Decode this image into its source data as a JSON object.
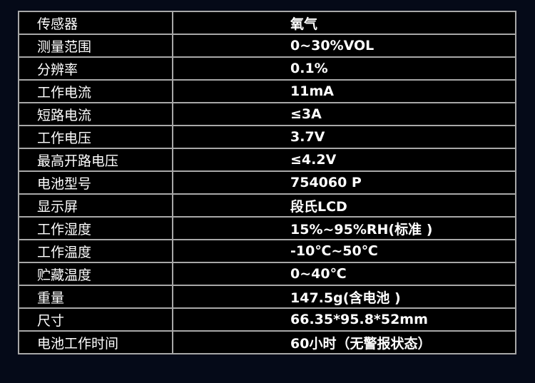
{
  "specs": [
    {
      "label": "传感器",
      "value": "氧气"
    },
    {
      "label": "测量范围",
      "value": "0~30%VOL"
    },
    {
      "label": "分辨率",
      "value": "0.1%"
    },
    {
      "label": "工作电流",
      "value": "11mA"
    },
    {
      "label": "短路电流",
      "value": "≤3A"
    },
    {
      "label": "工作电压",
      "value": "3.7V"
    },
    {
      "label": "最高开路电压",
      "value": "≤4.2V"
    },
    {
      "label": "电池型号",
      "value": "754060 P"
    },
    {
      "label": "显示屏",
      "value": "段氏LCD"
    },
    {
      "label": "工作湿度",
      "value": "15%~95%RH(标准 )"
    },
    {
      "label": "工作温度",
      "value": "-10℃~50℃"
    },
    {
      "label": "贮藏温度",
      "value": "0~40℃"
    },
    {
      "label": "重量",
      "value": "147.5g(含电池 )"
    },
    {
      "label": "尺寸",
      "value": "66.35*95.8*52mm"
    },
    {
      "label": "电池工作时间",
      "value": "60小时（无警报状态）"
    }
  ]
}
